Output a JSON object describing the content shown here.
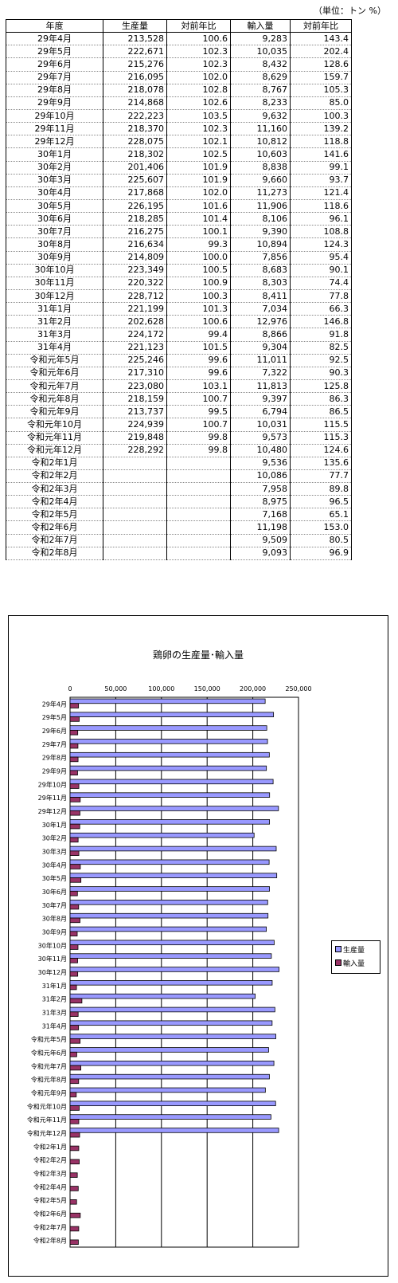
{
  "unit_note": "（単位：トン %）",
  "table": {
    "headers": [
      "年度",
      "生産量",
      "対前年比",
      "輸入量",
      "対前年比"
    ],
    "rows": [
      [
        "29年4月",
        "213,528",
        "100.6",
        "9,283",
        "143.4"
      ],
      [
        "29年5月",
        "222,671",
        "102.3",
        "10,035",
        "202.4"
      ],
      [
        "29年6月",
        "215,276",
        "102.3",
        "8,432",
        "128.6"
      ],
      [
        "29年7月",
        "216,095",
        "102.0",
        "8,629",
        "159.7"
      ],
      [
        "29年8月",
        "218,078",
        "102.8",
        "8,767",
        "105.3"
      ],
      [
        "29年9月",
        "214,868",
        "102.6",
        "8,233",
        "85.0"
      ],
      [
        "29年10月",
        "222,223",
        "103.5",
        "9,632",
        "100.3"
      ],
      [
        "29年11月",
        "218,370",
        "102.3",
        "11,160",
        "139.2"
      ],
      [
        "29年12月",
        "228,075",
        "102.1",
        "10,812",
        "118.8"
      ],
      [
        "30年1月",
        "218,302",
        "102.5",
        "10,603",
        "141.6"
      ],
      [
        "30年2月",
        "201,406",
        "101.9",
        "8,838",
        "99.1"
      ],
      [
        "30年3月",
        "225,607",
        "101.9",
        "9,660",
        "93.7"
      ],
      [
        "30年4月",
        "217,868",
        "102.0",
        "11,273",
        "121.4"
      ],
      [
        "30年5月",
        "226,195",
        "101.6",
        "11,906",
        "118.6"
      ],
      [
        "30年6月",
        "218,285",
        "101.4",
        "8,106",
        "96.1"
      ],
      [
        "30年7月",
        "216,275",
        "100.1",
        "9,390",
        "108.8"
      ],
      [
        "30年8月",
        "216,634",
        "99.3",
        "10,894",
        "124.3"
      ],
      [
        "30年9月",
        "214,809",
        "100.0",
        "7,856",
        "95.4"
      ],
      [
        "30年10月",
        "223,349",
        "100.5",
        "8,683",
        "90.1"
      ],
      [
        "30年11月",
        "220,322",
        "100.9",
        "8,303",
        "74.4"
      ],
      [
        "30年12月",
        "228,712",
        "100.3",
        "8,411",
        "77.8"
      ],
      [
        "31年1月",
        "221,199",
        "101.3",
        "7,034",
        "66.3"
      ],
      [
        "31年2月",
        "202,628",
        "100.6",
        "12,976",
        "146.8"
      ],
      [
        "31年3月",
        "224,172",
        "99.4",
        "8,866",
        "91.8"
      ],
      [
        "31年4月",
        "221,123",
        "101.5",
        "9,304",
        "82.5"
      ],
      [
        "令和元年5月",
        "225,246",
        "99.6",
        "11,011",
        "92.5"
      ],
      [
        "令和元年6月",
        "217,310",
        "99.6",
        "7,322",
        "90.3"
      ],
      [
        "令和元年7月",
        "223,080",
        "103.1",
        "11,813",
        "125.8"
      ],
      [
        "令和元年8月",
        "218,159",
        "100.7",
        "9,397",
        "86.3"
      ],
      [
        "令和元年9月",
        "213,737",
        "99.5",
        "6,794",
        "86.5"
      ],
      [
        "令和元年10月",
        "224,939",
        "100.7",
        "10,031",
        "115.5"
      ],
      [
        "令和元年11月",
        "219,848",
        "99.8",
        "9,573",
        "115.3"
      ],
      [
        "令和元年12月",
        "228,292",
        "99.8",
        "10,480",
        "124.6"
      ],
      [
        "令和2年1月",
        "",
        "",
        "9,536",
        "135.6"
      ],
      [
        "令和2年2月",
        "",
        "",
        "10,086",
        "77.7"
      ],
      [
        "令和2年3月",
        "",
        "",
        "7,958",
        "89.8"
      ],
      [
        "令和2年4月",
        "",
        "",
        "8,975",
        "96.5"
      ],
      [
        "令和2年5月",
        "",
        "",
        "7,168",
        "65.1"
      ],
      [
        "令和2年6月",
        "",
        "",
        "11,198",
        "153.0"
      ],
      [
        "令和2年7月",
        "",
        "",
        "9,509",
        "80.5"
      ],
      [
        "令和2年8月",
        "",
        "",
        "9,093",
        "96.9"
      ]
    ]
  },
  "chart_data": {
    "type": "bar",
    "orientation": "horizontal",
    "title": "鶏卵の生産量･輸入量",
    "xlabel": "",
    "ylabel": "",
    "xlim": [
      0,
      250000
    ],
    "ticks": [
      0,
      50000,
      100000,
      150000,
      200000,
      250000
    ],
    "tick_labels": [
      "0",
      "50,000",
      "100,000",
      "150,000",
      "200,000",
      "250,000"
    ],
    "grid": true,
    "legend_position": "right",
    "categories": [
      "29年4月",
      "29年5月",
      "29年6月",
      "29年7月",
      "29年8月",
      "29年9月",
      "29年10月",
      "29年11月",
      "29年12月",
      "30年1月",
      "30年2月",
      "30年3月",
      "30年4月",
      "30年5月",
      "30年6月",
      "30年7月",
      "30年8月",
      "30年9月",
      "30年10月",
      "30年11月",
      "30年12月",
      "31年1月",
      "31年2月",
      "31年3月",
      "31年4月",
      "令和元年5月",
      "令和元年6月",
      "令和元年7月",
      "令和元年8月",
      "令和元年9月",
      "令和元年10月",
      "令和元年11月",
      "令和元年12月",
      "令和2年1月",
      "令和2年2月",
      "令和2年3月",
      "令和2年4月",
      "令和2年5月",
      "令和2年6月",
      "令和2年7月",
      "令和2年8月"
    ],
    "series": [
      {
        "name": "生産量",
        "color": "#9999ff",
        "values": [
          213528,
          222671,
          215276,
          216095,
          218078,
          214868,
          222223,
          218370,
          228075,
          218302,
          201406,
          225607,
          217868,
          226195,
          218285,
          216275,
          216634,
          214809,
          223349,
          220322,
          228712,
          221199,
          202628,
          224172,
          221123,
          225246,
          217310,
          223080,
          218159,
          213737,
          224939,
          219848,
          228292,
          null,
          null,
          null,
          null,
          null,
          null,
          null,
          null
        ]
      },
      {
        "name": "輸入量",
        "color": "#993366",
        "values": [
          9283,
          10035,
          8432,
          8629,
          8767,
          8233,
          9632,
          11160,
          10812,
          10603,
          8838,
          9660,
          11273,
          11906,
          8106,
          9390,
          10894,
          7856,
          8683,
          8303,
          8411,
          7034,
          12976,
          8866,
          9304,
          11011,
          7322,
          11813,
          9397,
          6794,
          10031,
          9573,
          10480,
          9536,
          10086,
          7958,
          8975,
          7168,
          11198,
          9509,
          9093
        ]
      }
    ]
  }
}
